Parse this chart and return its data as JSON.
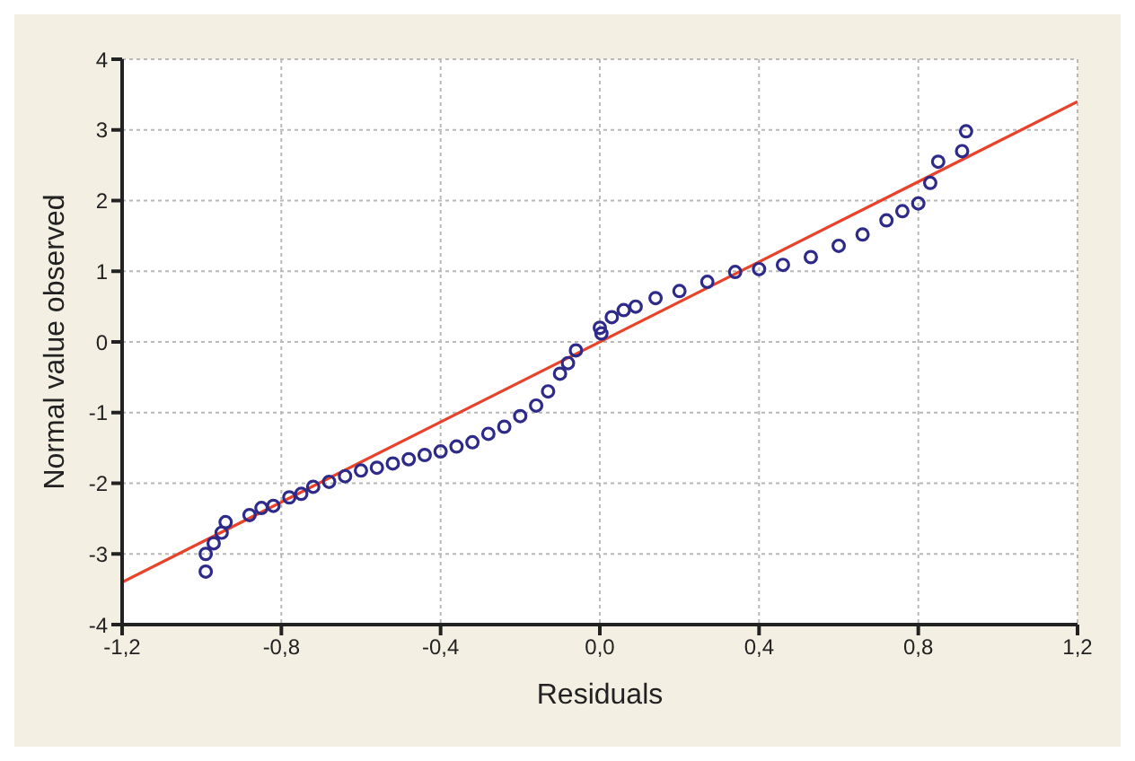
{
  "chart_data": {
    "type": "scatter",
    "xlabel": "Residuals",
    "ylabel": "Normal value observed",
    "xlim": [
      -1.2,
      1.2
    ],
    "ylim": [
      -4,
      4
    ],
    "xticks": [
      {
        "value": -1.2,
        "label": "-1,2"
      },
      {
        "value": -0.8,
        "label": "-0,8"
      },
      {
        "value": -0.4,
        "label": "-0,4"
      },
      {
        "value": 0,
        "label": "0,0"
      },
      {
        "value": 0.4,
        "label": "0,4"
      },
      {
        "value": 0.8,
        "label": "0,8"
      },
      {
        "value": 1.2,
        "label": "1,2"
      }
    ],
    "yticks": [
      -4,
      -3,
      -2,
      -1,
      0,
      1,
      2,
      3,
      4
    ],
    "grid": true,
    "series": [
      {
        "color": "#2e2a8a",
        "marker": "circle",
        "x": [
          -0.99,
          -0.99,
          -0.97,
          -0.95,
          -0.94,
          -0.88,
          -0.85,
          -0.82,
          -0.78,
          -0.75,
          -0.72,
          -0.68,
          -0.64,
          -0.6,
          -0.56,
          -0.52,
          -0.48,
          -0.44,
          -0.4,
          -0.36,
          -0.32,
          -0.28,
          -0.24,
          -0.2,
          -0.16,
          -0.13,
          -0.1,
          -0.08,
          -0.06,
          0.0,
          0.004,
          0.03,
          0.06,
          0.09,
          0.14,
          0.2,
          0.27,
          0.34,
          0.4,
          0.46,
          0.53,
          0.6,
          0.66,
          0.72,
          0.76,
          0.8,
          0.83,
          0.85,
          0.91,
          0.92
        ],
        "values": [
          -3.25,
          -3.0,
          -2.85,
          -2.7,
          -2.55,
          -2.45,
          -2.35,
          -2.32,
          -2.2,
          -2.15,
          -2.05,
          -1.98,
          -1.9,
          -1.82,
          -1.78,
          -1.72,
          -1.66,
          -1.6,
          -1.55,
          -1.48,
          -1.42,
          -1.3,
          -1.2,
          -1.05,
          -0.9,
          -0.7,
          -0.45,
          -0.3,
          -0.12,
          0.2,
          0.12,
          0.35,
          0.45,
          0.5,
          0.62,
          0.72,
          0.85,
          0.99,
          1.03,
          1.09,
          1.2,
          1.36,
          1.52,
          1.72,
          1.85,
          1.96,
          2.25,
          2.55,
          2.7,
          2.98
        ]
      },
      {
        "type": "line",
        "color": "#e8432a",
        "marker": "none",
        "x": [
          -1.2,
          1.2
        ],
        "values": [
          -3.4,
          3.4
        ]
      }
    ]
  }
}
